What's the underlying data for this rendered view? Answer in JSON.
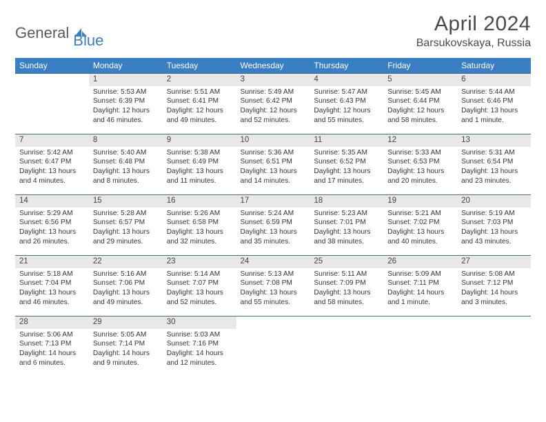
{
  "logo": {
    "text1": "General",
    "text2": "Blue",
    "icon_color": "#3a7fc4"
  },
  "header": {
    "title": "April 2024",
    "location": "Barsukovskaya, Russia"
  },
  "colors": {
    "header_bg": "#3a7fc4",
    "header_fg": "#ffffff",
    "daynum_bg": "#e8e8e8",
    "daynum_border": "#4a6a8a",
    "text": "#333333"
  },
  "weekdays": [
    "Sunday",
    "Monday",
    "Tuesday",
    "Wednesday",
    "Thursday",
    "Friday",
    "Saturday"
  ],
  "weeks": [
    [
      null,
      {
        "n": "1",
        "sr": "5:53 AM",
        "ss": "6:39 PM",
        "d1": "12 hours",
        "d2": "and 46 minutes."
      },
      {
        "n": "2",
        "sr": "5:51 AM",
        "ss": "6:41 PM",
        "d1": "12 hours",
        "d2": "and 49 minutes."
      },
      {
        "n": "3",
        "sr": "5:49 AM",
        "ss": "6:42 PM",
        "d1": "12 hours",
        "d2": "and 52 minutes."
      },
      {
        "n": "4",
        "sr": "5:47 AM",
        "ss": "6:43 PM",
        "d1": "12 hours",
        "d2": "and 55 minutes."
      },
      {
        "n": "5",
        "sr": "5:45 AM",
        "ss": "6:44 PM",
        "d1": "12 hours",
        "d2": "and 58 minutes."
      },
      {
        "n": "6",
        "sr": "5:44 AM",
        "ss": "6:46 PM",
        "d1": "13 hours",
        "d2": "and 1 minute."
      }
    ],
    [
      {
        "n": "7",
        "sr": "5:42 AM",
        "ss": "6:47 PM",
        "d1": "13 hours",
        "d2": "and 4 minutes."
      },
      {
        "n": "8",
        "sr": "5:40 AM",
        "ss": "6:48 PM",
        "d1": "13 hours",
        "d2": "and 8 minutes."
      },
      {
        "n": "9",
        "sr": "5:38 AM",
        "ss": "6:49 PM",
        "d1": "13 hours",
        "d2": "and 11 minutes."
      },
      {
        "n": "10",
        "sr": "5:36 AM",
        "ss": "6:51 PM",
        "d1": "13 hours",
        "d2": "and 14 minutes."
      },
      {
        "n": "11",
        "sr": "5:35 AM",
        "ss": "6:52 PM",
        "d1": "13 hours",
        "d2": "and 17 minutes."
      },
      {
        "n": "12",
        "sr": "5:33 AM",
        "ss": "6:53 PM",
        "d1": "13 hours",
        "d2": "and 20 minutes."
      },
      {
        "n": "13",
        "sr": "5:31 AM",
        "ss": "6:54 PM",
        "d1": "13 hours",
        "d2": "and 23 minutes."
      }
    ],
    [
      {
        "n": "14",
        "sr": "5:29 AM",
        "ss": "6:56 PM",
        "d1": "13 hours",
        "d2": "and 26 minutes."
      },
      {
        "n": "15",
        "sr": "5:28 AM",
        "ss": "6:57 PM",
        "d1": "13 hours",
        "d2": "and 29 minutes."
      },
      {
        "n": "16",
        "sr": "5:26 AM",
        "ss": "6:58 PM",
        "d1": "13 hours",
        "d2": "and 32 minutes."
      },
      {
        "n": "17",
        "sr": "5:24 AM",
        "ss": "6:59 PM",
        "d1": "13 hours",
        "d2": "and 35 minutes."
      },
      {
        "n": "18",
        "sr": "5:23 AM",
        "ss": "7:01 PM",
        "d1": "13 hours",
        "d2": "and 38 minutes."
      },
      {
        "n": "19",
        "sr": "5:21 AM",
        "ss": "7:02 PM",
        "d1": "13 hours",
        "d2": "and 40 minutes."
      },
      {
        "n": "20",
        "sr": "5:19 AM",
        "ss": "7:03 PM",
        "d1": "13 hours",
        "d2": "and 43 minutes."
      }
    ],
    [
      {
        "n": "21",
        "sr": "5:18 AM",
        "ss": "7:04 PM",
        "d1": "13 hours",
        "d2": "and 46 minutes."
      },
      {
        "n": "22",
        "sr": "5:16 AM",
        "ss": "7:06 PM",
        "d1": "13 hours",
        "d2": "and 49 minutes."
      },
      {
        "n": "23",
        "sr": "5:14 AM",
        "ss": "7:07 PM",
        "d1": "13 hours",
        "d2": "and 52 minutes."
      },
      {
        "n": "24",
        "sr": "5:13 AM",
        "ss": "7:08 PM",
        "d1": "13 hours",
        "d2": "and 55 minutes."
      },
      {
        "n": "25",
        "sr": "5:11 AM",
        "ss": "7:09 PM",
        "d1": "13 hours",
        "d2": "and 58 minutes."
      },
      {
        "n": "26",
        "sr": "5:09 AM",
        "ss": "7:11 PM",
        "d1": "14 hours",
        "d2": "and 1 minute."
      },
      {
        "n": "27",
        "sr": "5:08 AM",
        "ss": "7:12 PM",
        "d1": "14 hours",
        "d2": "and 3 minutes."
      }
    ],
    [
      {
        "n": "28",
        "sr": "5:06 AM",
        "ss": "7:13 PM",
        "d1": "14 hours",
        "d2": "and 6 minutes."
      },
      {
        "n": "29",
        "sr": "5:05 AM",
        "ss": "7:14 PM",
        "d1": "14 hours",
        "d2": "and 9 minutes."
      },
      {
        "n": "30",
        "sr": "5:03 AM",
        "ss": "7:16 PM",
        "d1": "14 hours",
        "d2": "and 12 minutes."
      },
      null,
      null,
      null,
      null
    ]
  ],
  "labels": {
    "sunrise": "Sunrise:",
    "sunset": "Sunset:",
    "daylight": "Daylight:"
  }
}
